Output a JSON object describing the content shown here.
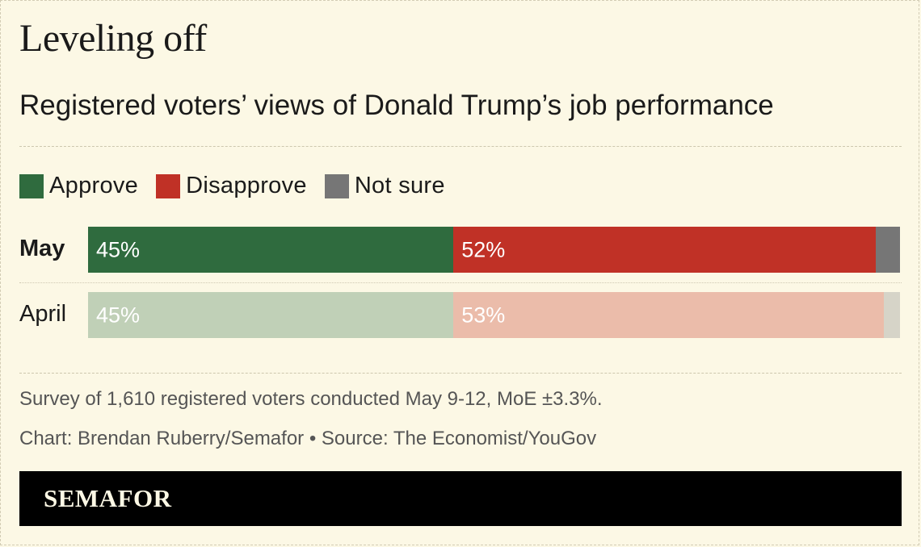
{
  "header": {
    "title": "Leveling off",
    "subtitle": "Registered voters’ views of Donald Trump’s job performance"
  },
  "legend": [
    {
      "label": "Approve",
      "color": "#2f6b3e"
    },
    {
      "label": "Disapprove",
      "color": "#c03126"
    },
    {
      "label": "Not sure",
      "color": "#767676"
    }
  ],
  "chart_data": {
    "type": "bar",
    "orientation": "horizontal",
    "stacked": true,
    "categories": [
      "May",
      "April"
    ],
    "series": [
      {
        "name": "Approve",
        "values": [
          45,
          45
        ],
        "labels": [
          "45%",
          "45%"
        ]
      },
      {
        "name": "Disapprove",
        "values": [
          52,
          53
        ],
        "labels": [
          "52%",
          "53%"
        ]
      },
      {
        "name": "Not sure",
        "values": [
          3,
          2
        ]
      }
    ],
    "xlim": [
      0,
      100
    ],
    "grid": false,
    "legend_position": "top-left",
    "colors": {
      "May": [
        "#2f6b3e",
        "#c03126",
        "#767676"
      ],
      "April": [
        "#c0d0b7",
        "#ebbcaa",
        "#d6d4c8"
      ]
    }
  },
  "notes": {
    "survey": "Survey of 1,610 registered voters conducted May 9-12, MoE ±3.3%.",
    "credit": "Chart: Brendan Ruberry/Semafor • Source: The Economist/YouGov"
  },
  "footer": {
    "logo": "SEMAFOR"
  }
}
